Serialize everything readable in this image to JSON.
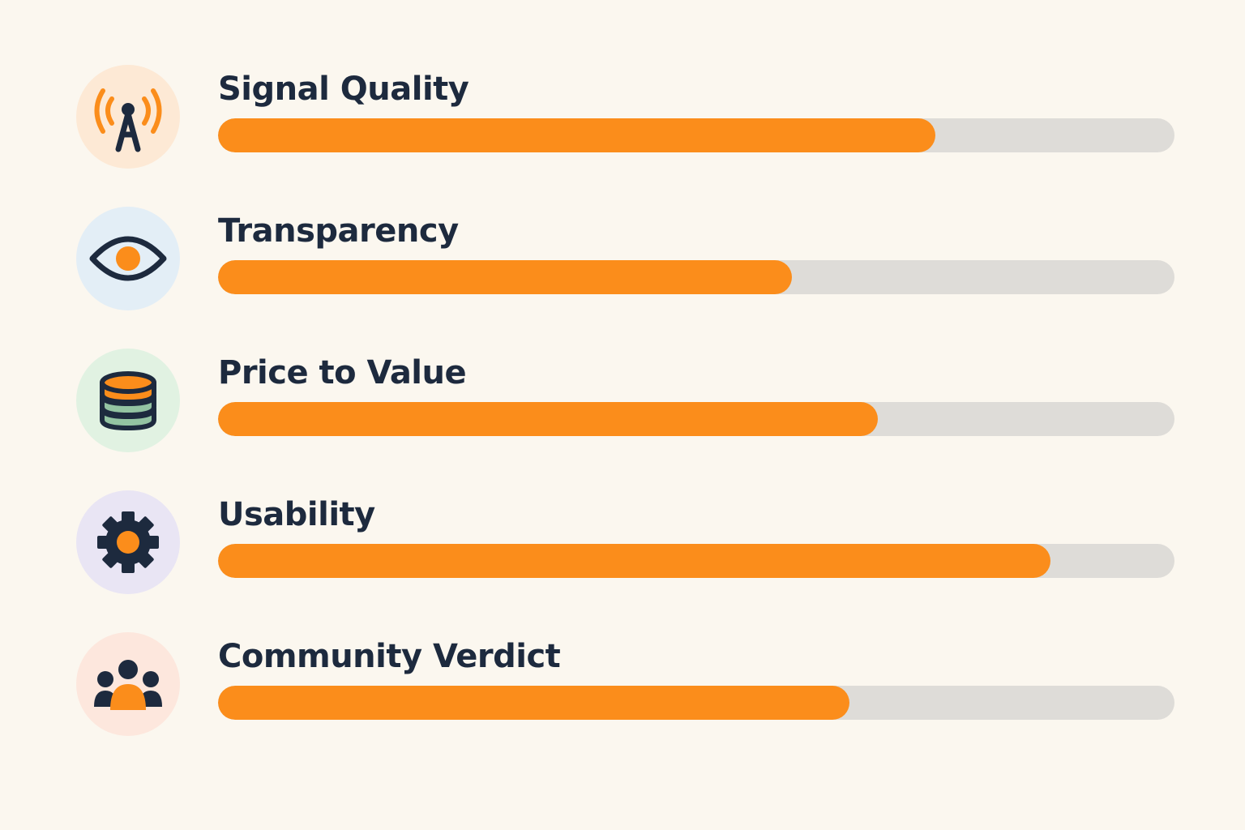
{
  "chart_data": {
    "type": "bar",
    "orientation": "horizontal",
    "categories": [
      "Signal Quality",
      "Transparency",
      "Price to Value",
      "Usability",
      "Community Verdict"
    ],
    "values": [
      0.75,
      0.6,
      0.69,
      0.87,
      0.66
    ],
    "xlim": [
      0,
      1
    ],
    "grid": false,
    "bar_color": "#fb8d1b",
    "track_color": "#dedcd8",
    "icons": [
      "antenna-icon",
      "eye-icon",
      "coin-stack-icon",
      "gear-icon",
      "community-icon"
    ],
    "icon_backgrounds": [
      "#fde9d5",
      "#e3eef6",
      "#e1f2e2",
      "#e9e5f4",
      "#fde7dd"
    ]
  },
  "colors": {
    "background": "#fbf7ef",
    "text": "#1d2a3e",
    "icon_dark": "#1d2a3e",
    "icon_accent": "#fb8d1b",
    "coin_green": "#93c3a2"
  }
}
